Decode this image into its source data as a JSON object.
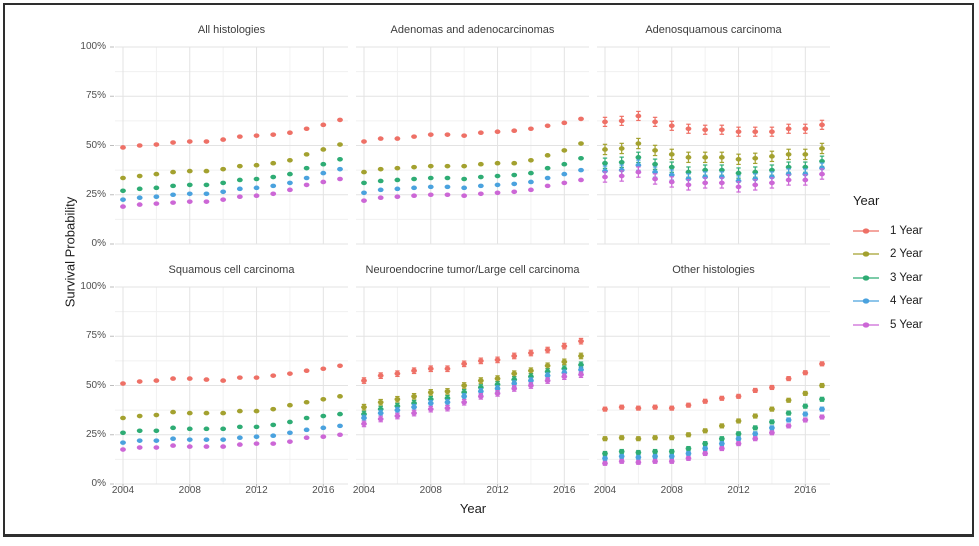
{
  "chart_data": {
    "type": "scatter",
    "subtype": "faceted-pointrange",
    "title": "",
    "xlabel": "Year",
    "ylabel": "Survival Probability",
    "legend_title": "Year",
    "legend_position": "right",
    "grid": "major+minor",
    "ylim": [
      0,
      100
    ],
    "x": [
      2004,
      2005,
      2006,
      2007,
      2008,
      2009,
      2010,
      2011,
      2012,
      2013,
      2014,
      2015,
      2016,
      2017
    ],
    "x_ticks": [
      "2004",
      "2008",
      "2012",
      "2016"
    ],
    "y_ticks": [
      "100%",
      "75%",
      "50%",
      "25%",
      "0%"
    ],
    "series_meta": [
      {
        "name": "1 Year",
        "color": "#EE7066"
      },
      {
        "name": "2 Year",
        "color": "#A3A12F"
      },
      {
        "name": "3 Year",
        "color": "#2EAC74"
      },
      {
        "name": "4 Year",
        "color": "#4AA2DE"
      },
      {
        "name": "5 Year",
        "color": "#CC67D6"
      }
    ],
    "panels": [
      {
        "title": "All histologies",
        "ci": [
          0.5,
          0.5,
          0.5,
          0.5,
          0.5
        ],
        "series": [
          {
            "name": "1 Year",
            "values": [
              49,
              50,
              50.5,
              51.5,
              52,
              52,
              53,
              54.5,
              55,
              55.5,
              56.5,
              58.5,
              60.5,
              63
            ]
          },
          {
            "name": "2 Year",
            "values": [
              33.5,
              34.5,
              35.5,
              36.5,
              37,
              37,
              38,
              39.5,
              40,
              41,
              42.5,
              45.5,
              48,
              50.5
            ]
          },
          {
            "name": "3 Year",
            "values": [
              27,
              28,
              28.5,
              29.5,
              30,
              30,
              31,
              32.5,
              33,
              34,
              35.5,
              38.5,
              40.5,
              43
            ]
          },
          {
            "name": "4 Year",
            "values": [
              22.5,
              23.5,
              24,
              25,
              25.5,
              25.5,
              26.5,
              28,
              28.5,
              29.5,
              31,
              33.5,
              36,
              38
            ]
          },
          {
            "name": "5 Year",
            "values": [
              19,
              20,
              20.5,
              21,
              21.5,
              21.5,
              22.5,
              24,
              24.5,
              25.5,
              27.5,
              30,
              31.5,
              33
            ]
          }
        ]
      },
      {
        "title": "Adenomas and adenocarcinomas",
        "ci": [
          0.6,
          0.6,
          0.6,
          0.6,
          0.6
        ],
        "series": [
          {
            "name": "1 Year",
            "values": [
              52,
              53.5,
              53.5,
              54.5,
              55.5,
              55.5,
              55,
              56.5,
              57,
              57.5,
              58.5,
              60,
              61.5,
              63.5
            ]
          },
          {
            "name": "2 Year",
            "values": [
              36.5,
              38,
              38.5,
              39,
              39.5,
              39.5,
              39.5,
              40.5,
              41,
              41,
              42.5,
              45,
              47.5,
              51
            ]
          },
          {
            "name": "3 Year",
            "values": [
              31,
              32,
              32.5,
              33,
              33.5,
              33.5,
              33,
              34,
              34.5,
              35,
              36,
              38.5,
              40.5,
              43.5
            ]
          },
          {
            "name": "4 Year",
            "values": [
              26,
              27.5,
              28,
              28.5,
              29,
              29,
              28.5,
              29.5,
              30,
              30.5,
              31.5,
              33.5,
              35.5,
              37.5
            ]
          },
          {
            "name": "5 Year",
            "values": [
              22,
              23.5,
              24,
              24.5,
              25,
              25,
              24.5,
              25.5,
              26,
              26.5,
              27.5,
              29.5,
              31,
              32.5
            ]
          }
        ]
      },
      {
        "title": "Adenosquamous carcinoma",
        "ci": [
          2.3,
          2.6,
          2.6,
          2.6,
          2.6
        ],
        "series": [
          {
            "name": "1 Year",
            "values": [
              62,
              62.5,
              65,
              62,
              60,
              58.5,
              58,
              58,
              57,
              57,
              57,
              58.5,
              58.5,
              60.5
            ]
          },
          {
            "name": "2 Year",
            "values": [
              48,
              48.5,
              51,
              47.5,
              45.5,
              44,
              44,
              44,
              43,
              43.5,
              44.5,
              45.5,
              45.5,
              48.5
            ]
          },
          {
            "name": "3 Year",
            "values": [
              41,
              41.5,
              44,
              40.5,
              39,
              36.5,
              37.5,
              37.5,
              36,
              36.5,
              37.5,
              39,
              39,
              42
            ]
          },
          {
            "name": "4 Year",
            "values": [
              37,
              37.5,
              40,
              36.5,
              35,
              33,
              34,
              34,
              32,
              33,
              34,
              35.5,
              35.5,
              38.5
            ]
          },
          {
            "name": "5 Year",
            "values": [
              34,
              34.5,
              36.5,
              33,
              31.5,
              30,
              31,
              31,
              29,
              30,
              31,
              32.5,
              32.5,
              35.5
            ]
          }
        ]
      },
      {
        "title": "Squamous cell carcinoma",
        "ci": [
          0.6,
          0.6,
          0.6,
          0.6,
          0.6
        ],
        "series": [
          {
            "name": "1 Year",
            "values": [
              51,
              52,
              52.5,
              53.5,
              53.5,
              53,
              52.5,
              54,
              54,
              55,
              56,
              57.5,
              58.5,
              60
            ]
          },
          {
            "name": "2 Year",
            "values": [
              33.5,
              34.5,
              35,
              36.5,
              36,
              36,
              36,
              37,
              37,
              38,
              40,
              41.5,
              43,
              44.5
            ]
          },
          {
            "name": "3 Year",
            "values": [
              26,
              27,
              27,
              28.5,
              28,
              28,
              28,
              29,
              29,
              30,
              31.5,
              33.5,
              34.5,
              35.5
            ]
          },
          {
            "name": "4 Year",
            "values": [
              21,
              22,
              22,
              23,
              22.5,
              22.5,
              22.5,
              23.5,
              24,
              24.5,
              26,
              27.5,
              28.5,
              29.5
            ]
          },
          {
            "name": "5 Year",
            "values": [
              17.5,
              18.5,
              18.5,
              19.5,
              19,
              19,
              19,
              20,
              20.5,
              20.5,
              21.5,
              23.5,
              24,
              25
            ]
          }
        ]
      },
      {
        "title": "Neuroendocrine tumor/Large cell carcinoma",
        "ci": [
          1.4,
          1.4,
          1.4,
          1.4,
          1.4
        ],
        "series": [
          {
            "name": "1 Year",
            "values": [
              52.5,
              55,
              56,
              57.5,
              58.5,
              58.5,
              61,
              62.5,
              63,
              65,
              66.5,
              68,
              70,
              72.5
            ]
          },
          {
            "name": "2 Year",
            "values": [
              39,
              41.5,
              43,
              44.5,
              46.5,
              47,
              50,
              52.5,
              53.5,
              56,
              57.5,
              60,
              62,
              65
            ]
          },
          {
            "name": "3 Year",
            "values": [
              35.5,
              38,
              39.5,
              41,
              43,
              43.5,
              46.5,
              49,
              50.5,
              53,
              54.5,
              57,
              58.5,
              60.5
            ]
          },
          {
            "name": "4 Year",
            "values": [
              33.5,
              36,
              37.5,
              39,
              41,
              41.5,
              44.5,
              47,
              48.5,
              51,
              52.5,
              55,
              56.5,
              58
            ]
          },
          {
            "name": "5 Year",
            "values": [
              30.5,
              33,
              34.5,
              36,
              38,
              38.5,
              41.5,
              44.5,
              46,
              48.5,
              50,
              52.5,
              54.5,
              55.5
            ]
          }
        ]
      },
      {
        "title": "Other histologies",
        "ci": [
          1.0,
          1.0,
          1.0,
          1.0,
          1.0
        ],
        "series": [
          {
            "name": "1 Year",
            "values": [
              38,
              39,
              38.5,
              39,
              38.5,
              40,
              42,
              43.5,
              44.5,
              47.5,
              49,
              53.5,
              56.5,
              61
            ]
          },
          {
            "name": "2 Year",
            "values": [
              23,
              23.5,
              23,
              23.5,
              23.5,
              25,
              27,
              29.5,
              32,
              34.5,
              38,
              42.5,
              46,
              50
            ]
          },
          {
            "name": "3 Year",
            "values": [
              15.5,
              16.5,
              16,
              16.5,
              16.5,
              18,
              20.5,
              23,
              25.5,
              28.5,
              31.5,
              36,
              39.5,
              43
            ]
          },
          {
            "name": "4 Year",
            "values": [
              13,
              14,
              13.5,
              14,
              14,
              15.5,
              18,
              20.5,
              23,
              25.5,
              28.5,
              32.5,
              35.5,
              38
            ]
          },
          {
            "name": "5 Year",
            "values": [
              10.5,
              11.5,
              11,
              11.5,
              11.5,
              13,
              15.5,
              18,
              20.5,
              23,
              26,
              29.5,
              32.5,
              34
            ]
          }
        ]
      }
    ],
    "style_colors": {
      "grid_major": "#e3e3e3",
      "grid_minor": "#f0f0f0",
      "tick_mark": "#bdbdbd",
      "tick_label": "#4f4f4f",
      "panel_title": "#3d3d3d",
      "axis_title": "#1c1c1c",
      "frame_border": "#2e2e2e"
    }
  }
}
